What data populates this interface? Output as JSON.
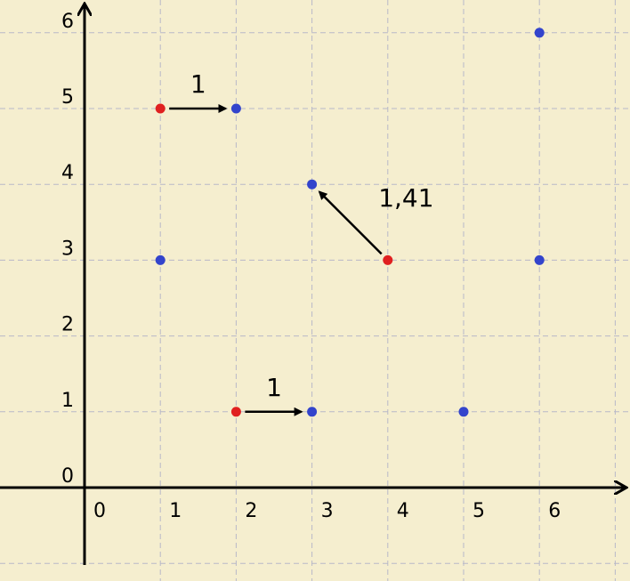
{
  "chart_data": {
    "type": "scatter",
    "title": "",
    "xlabel": "",
    "ylabel": "",
    "xlim": [
      -1,
      7
    ],
    "ylim": [
      -1,
      7
    ],
    "grid": true,
    "x_ticks": [
      "0",
      "1",
      "2",
      "3",
      "4",
      "5",
      "6"
    ],
    "y_ticks": [
      "0",
      "1",
      "2",
      "3",
      "4",
      "5",
      "6"
    ],
    "series": [
      {
        "color": "#3344cc",
        "points": [
          {
            "x": 1,
            "y": 3
          },
          {
            "x": 2,
            "y": 5
          },
          {
            "x": 3,
            "y": 4
          },
          {
            "x": 3,
            "y": 1
          },
          {
            "x": 5,
            "y": 1
          },
          {
            "x": 6,
            "y": 3
          },
          {
            "x": 6,
            "y": 6
          }
        ]
      },
      {
        "color": "#e02020",
        "points": [
          {
            "x": 1,
            "y": 5
          },
          {
            "x": 2,
            "y": 1
          },
          {
            "x": 4,
            "y": 3
          }
        ]
      }
    ],
    "arrows": [
      {
        "from": [
          1,
          5
        ],
        "to": [
          2,
          5
        ],
        "label": "1"
      },
      {
        "from": [
          2,
          1
        ],
        "to": [
          3,
          1
        ],
        "label": "1"
      },
      {
        "from": [
          4,
          3
        ],
        "to": [
          3,
          4
        ],
        "label": "1,41"
      }
    ]
  }
}
